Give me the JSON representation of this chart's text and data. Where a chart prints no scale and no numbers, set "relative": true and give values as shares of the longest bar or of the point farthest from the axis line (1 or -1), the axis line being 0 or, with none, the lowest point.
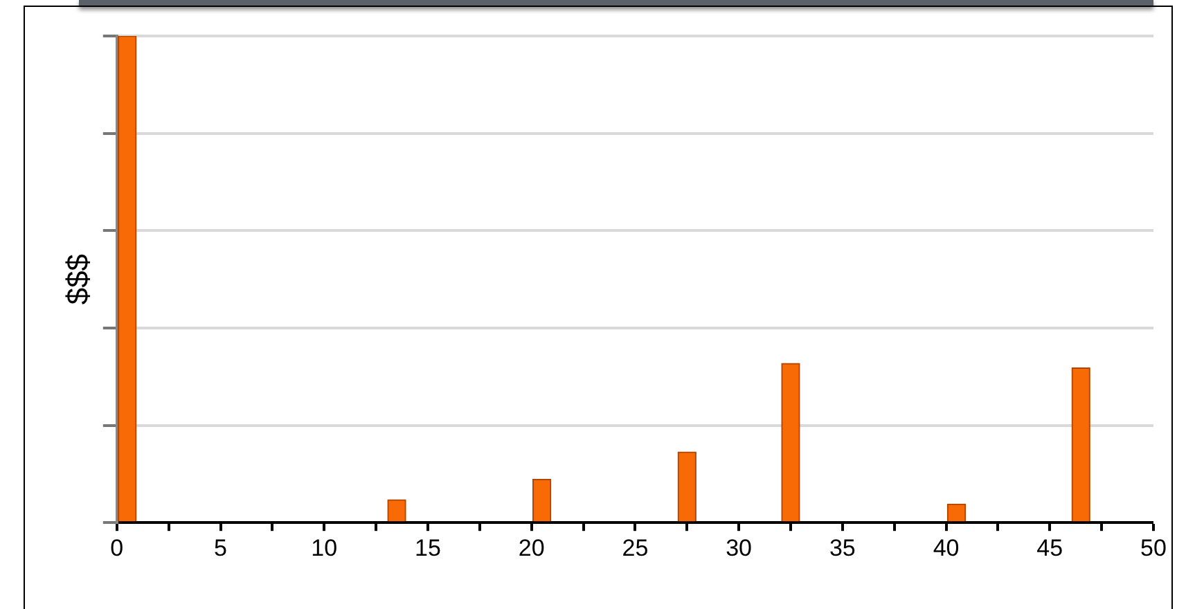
{
  "chart_data": {
    "type": "bar",
    "ylabel": "$$$",
    "relative": true,
    "x": [
      0.5,
      13.5,
      20.5,
      27.5,
      32.5,
      40.5,
      46.5
    ],
    "values": [
      1,
      0.047,
      0.089,
      0.145,
      0.327,
      0.038,
      0.318
    ],
    "color": "#f76a05",
    "xlim": [
      0,
      50
    ],
    "xticks": [
      0,
      {
        "value": 2.5,
        "label": null
      },
      5,
      {
        "value": 7.5,
        "label": null
      },
      10,
      {
        "value": 12.5,
        "label": null
      },
      15,
      {
        "value": 17.5,
        "label": null
      },
      20,
      {
        "value": 22.5,
        "label": null
      },
      25,
      {
        "value": 27.5,
        "label": null
      },
      30,
      {
        "value": 32.5,
        "label": null
      },
      35,
      {
        "value": 37.5,
        "label": null
      },
      40,
      {
        "value": 42.5,
        "label": null
      },
      45,
      {
        "value": 47.5,
        "label": null
      },
      50
    ],
    "grid": "y",
    "legend": false
  }
}
